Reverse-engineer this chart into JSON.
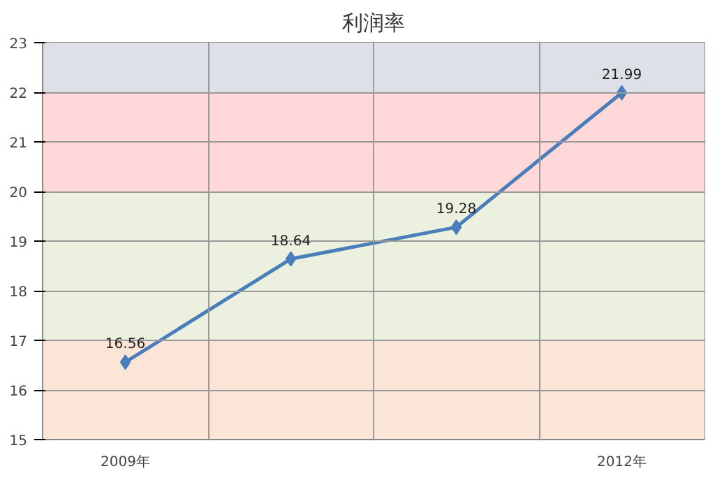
{
  "chart_data": {
    "type": "line",
    "title": "利润率",
    "categories": [
      "2009年",
      null,
      null,
      "2012年"
    ],
    "series": [
      {
        "color": "#4a7ebb",
        "values": [
          16.56,
          18.64,
          19.28,
          21.99
        ]
      }
    ],
    "ylim": [
      15,
      23
    ],
    "yticks": [
      15,
      16,
      17,
      18,
      19,
      20,
      21,
      22,
      23
    ],
    "bands": [
      {
        "axis": "y",
        "from": 15,
        "to": 17,
        "color": "#fbe5d6"
      },
      {
        "axis": "y",
        "from": 17,
        "to": 20,
        "color": "#ebf1de"
      },
      {
        "axis": "y",
        "from": 20,
        "to": 22,
        "color": "#ffd9d9"
      },
      {
        "axis": "y",
        "from": 22,
        "to": 23,
        "color": "#dde0e6"
      }
    ],
    "data_labels": true,
    "grid": true,
    "marker": "diamond",
    "line_style": "solid"
  }
}
